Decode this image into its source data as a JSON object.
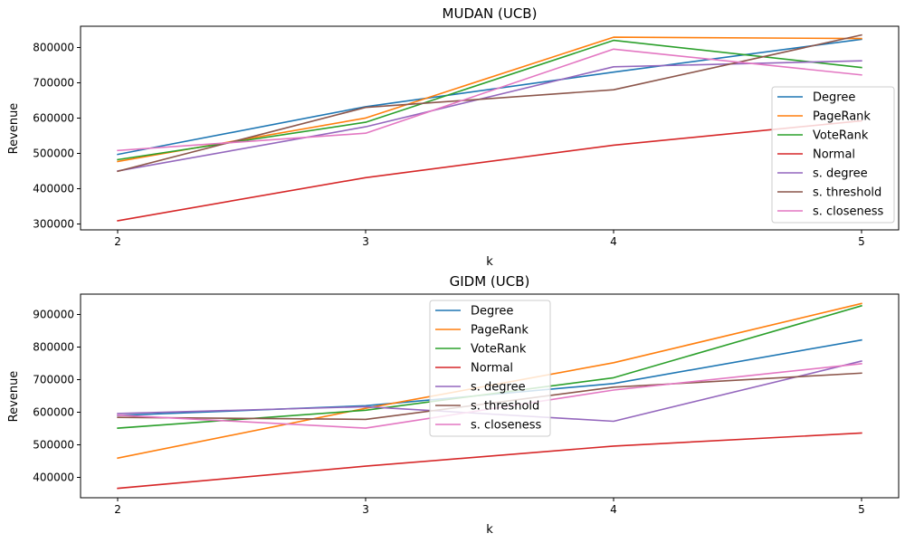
{
  "chart_data": [
    {
      "type": "line",
      "title": "MUDAN (UCB)",
      "xlabel": "k",
      "ylabel": "Revenue",
      "x": [
        2,
        3,
        4,
        5
      ],
      "xlim": [
        1.85,
        5.15
      ],
      "ylim": [
        283000,
        860000
      ],
      "xticks": [
        "2",
        "3",
        "4",
        "5"
      ],
      "yticks": [
        "300000",
        "400000",
        "500000",
        "600000",
        "700000",
        "800000"
      ],
      "ytick_values": [
        300000,
        400000,
        500000,
        600000,
        700000,
        800000
      ],
      "legend_position": "lower-right",
      "series": [
        {
          "name": "Degree",
          "color": "#1f77b4",
          "values": [
            497000,
            632000,
            730000,
            823000
          ]
        },
        {
          "name": "PageRank",
          "color": "#ff7f0e",
          "values": [
            477000,
            600000,
            829000,
            825000
          ]
        },
        {
          "name": "VoteRank",
          "color": "#2ca02c",
          "values": [
            482000,
            588000,
            820000,
            743000
          ]
        },
        {
          "name": "Normal",
          "color": "#d62728",
          "values": [
            309000,
            431000,
            523000,
            592000
          ]
        },
        {
          "name": "s. degree",
          "color": "#9467bd",
          "values": [
            450000,
            575000,
            745000,
            762000
          ]
        },
        {
          "name": "s. threshold",
          "color": "#8c564b",
          "values": [
            449000,
            630000,
            680000,
            835000
          ]
        },
        {
          "name": "s. closeness",
          "color": "#e377c2",
          "values": [
            508000,
            557000,
            795000,
            722000
          ]
        }
      ]
    },
    {
      "type": "line",
      "title": "GIDM (UCB)",
      "xlabel": "k",
      "ylabel": "Revenue",
      "x": [
        2,
        3,
        4,
        5
      ],
      "xlim": [
        1.85,
        5.15
      ],
      "ylim": [
        337000,
        963000
      ],
      "xticks": [
        "2",
        "3",
        "4",
        "5"
      ],
      "yticks": [
        "400000",
        "500000",
        "600000",
        "700000",
        "800000",
        "900000"
      ],
      "ytick_values": [
        400000,
        500000,
        600000,
        700000,
        800000,
        900000
      ],
      "legend_position": "upper-center",
      "series": [
        {
          "name": "Degree",
          "color": "#1f77b4",
          "values": [
            590000,
            620000,
            688000,
            822000
          ]
        },
        {
          "name": "PageRank",
          "color": "#ff7f0e",
          "values": [
            459000,
            612000,
            752000,
            934000
          ]
        },
        {
          "name": "VoteRank",
          "color": "#2ca02c",
          "values": [
            551000,
            606000,
            706000,
            927000
          ]
        },
        {
          "name": "Normal",
          "color": "#d62728",
          "values": [
            366000,
            434000,
            496000,
            536000
          ]
        },
        {
          "name": "s. degree",
          "color": "#9467bd",
          "values": [
            596000,
            617000,
            572000,
            757000
          ]
        },
        {
          "name": "s. threshold",
          "color": "#8c564b",
          "values": [
            584000,
            578000,
            677000,
            720000
          ]
        },
        {
          "name": "s. closeness",
          "color": "#e377c2",
          "values": [
            591000,
            551000,
            668000,
            749000
          ]
        }
      ]
    }
  ]
}
